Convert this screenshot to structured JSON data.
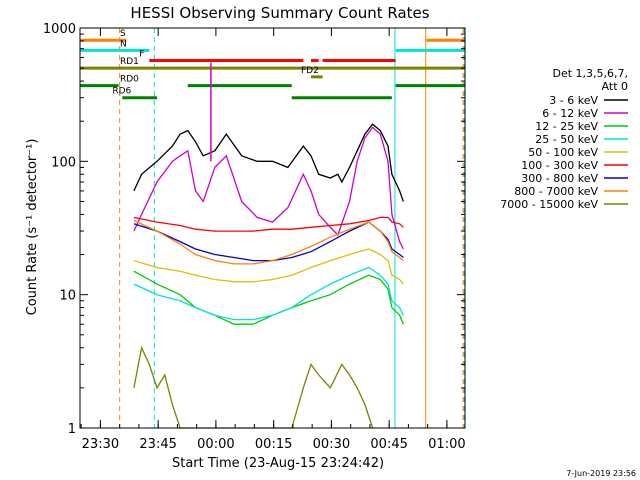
{
  "chart_data": {
    "type": "line",
    "title": "HESSI Observing Summary Count Rates",
    "xlabel": "Start Time (23-Aug-15 23:24:42)",
    "ylabel": "Count Rate (s⁻¹ detector⁻¹)",
    "y_scale": "log",
    "ylim": [
      1,
      1000
    ],
    "xlim_minutes_from_start": [
      0,
      100
    ],
    "x_ticks": [
      "23:30",
      "23:45",
      "00:00",
      "00:15",
      "00:30",
      "00:45",
      "01:00"
    ],
    "y_ticks": [
      "1",
      "10",
      "100",
      "1000"
    ],
    "legend_title": [
      "Det 1,3,5,6,7,",
      "Att 0"
    ],
    "legend_position": "right",
    "timestamp": "7-Jun-2019 23:56",
    "series": [
      {
        "name": "3 - 6 keV",
        "color": "#000000",
        "x": [
          14,
          16,
          20,
          24,
          26,
          28,
          30,
          32,
          35,
          38,
          42,
          46,
          50,
          54,
          58,
          60,
          62,
          65,
          67,
          68,
          70,
          72,
          74,
          76,
          78,
          80,
          81,
          83,
          84
        ],
        "y": [
          60,
          80,
          100,
          130,
          160,
          170,
          140,
          110,
          120,
          160,
          110,
          100,
          100,
          90,
          130,
          110,
          80,
          75,
          80,
          70,
          90,
          120,
          160,
          190,
          170,
          130,
          80,
          60,
          50
        ]
      },
      {
        "name": "6 - 12 keV",
        "color": "#cc00cc",
        "x": [
          14,
          16,
          20,
          24,
          26,
          28,
          30,
          32,
          35,
          38,
          42,
          46,
          50,
          54,
          58,
          60,
          62,
          65,
          67,
          70,
          72,
          74,
          76,
          78,
          80,
          81,
          83,
          84
        ],
        "y": [
          30,
          40,
          70,
          100,
          110,
          120,
          60,
          50,
          90,
          110,
          50,
          38,
          35,
          45,
          80,
          60,
          40,
          32,
          28,
          50,
          100,
          150,
          180,
          160,
          100,
          40,
          25,
          22
        ]
      },
      {
        "name": "12 - 25 keV",
        "color": "#00cc00",
        "x": [
          14,
          20,
          26,
          30,
          35,
          40,
          45,
          50,
          55,
          60,
          65,
          70,
          75,
          78,
          80,
          81,
          83,
          84
        ],
        "y": [
          15,
          12,
          10,
          8,
          7,
          6,
          6,
          7,
          8,
          9,
          10,
          12,
          14,
          13,
          11,
          8,
          7,
          6
        ]
      },
      {
        "name": "25 - 50 keV",
        "color": "#00e0e0",
        "x": [
          14,
          20,
          26,
          30,
          35,
          40,
          45,
          50,
          55,
          60,
          65,
          70,
          75,
          78,
          80,
          81,
          83,
          84
        ],
        "y": [
          12,
          10,
          9,
          8,
          7,
          6.5,
          6.5,
          7,
          8,
          10,
          12,
          14,
          16,
          14,
          12,
          9,
          8,
          7
        ]
      },
      {
        "name": "50 - 100 keV",
        "color": "#e0c000",
        "x": [
          14,
          20,
          26,
          30,
          35,
          40,
          45,
          50,
          55,
          60,
          65,
          70,
          75,
          78,
          80,
          81,
          83,
          84
        ],
        "y": [
          18,
          16,
          15,
          14,
          13,
          12.5,
          12.5,
          13,
          14,
          16,
          18,
          20,
          22,
          20,
          18,
          14,
          13,
          12
        ]
      },
      {
        "name": "100 - 300 keV",
        "color": "#ff0000",
        "x": [
          14,
          20,
          26,
          30,
          35,
          40,
          45,
          50,
          55,
          60,
          65,
          70,
          75,
          78,
          80,
          81,
          83,
          84
        ],
        "y": [
          38,
          35,
          33,
          31,
          30,
          30,
          30,
          31,
          31,
          32,
          33,
          34,
          36,
          38,
          38,
          35,
          34,
          32
        ]
      },
      {
        "name": "300 - 800 keV",
        "color": "#0000cc",
        "x": [
          14,
          20,
          26,
          30,
          35,
          40,
          45,
          50,
          55,
          60,
          65,
          70,
          75,
          78,
          80,
          81,
          83,
          84
        ],
        "y": [
          34,
          30,
          25,
          22,
          20,
          19,
          18,
          18,
          19,
          21,
          25,
          30,
          35,
          30,
          26,
          22,
          20,
          19
        ]
      },
      {
        "name": "800 - 7000 keV",
        "color": "#ff8000",
        "x": [
          14,
          20,
          26,
          30,
          35,
          40,
          45,
          50,
          55,
          60,
          65,
          70,
          75,
          78,
          80,
          81,
          83,
          84
        ],
        "y": [
          36,
          30,
          24,
          20,
          18,
          17,
          17,
          18,
          20,
          23,
          27,
          31,
          35,
          30,
          25,
          21,
          19,
          18
        ]
      },
      {
        "name": "7000 - 15000 keV",
        "color": "#808000",
        "x": [
          14,
          16,
          18,
          20,
          22,
          24,
          26,
          55,
          58,
          60,
          62,
          65,
          68,
          70,
          72,
          74,
          76
        ],
        "y": [
          2,
          4,
          3,
          2,
          2.5,
          1.5,
          1,
          1,
          2,
          3,
          2.5,
          2,
          3,
          2.5,
          2,
          1.5,
          1
        ]
      }
    ],
    "flag_bars": [
      {
        "label": "S",
        "color": "#ff8000",
        "level": 810,
        "segments": [
          [
            0,
            12
          ],
          [
            90,
            100
          ]
        ]
      },
      {
        "label": "N",
        "color": "#00e0e0",
        "level": 680,
        "segments": [
          [
            0,
            18
          ],
          [
            82,
            100
          ]
        ]
      },
      {
        "label": "F",
        "color": "#ff0000",
        "level": 570,
        "segments": [
          [
            18,
            58
          ],
          [
            60,
            62
          ],
          [
            63,
            82
          ]
        ]
      },
      {
        "label": "RD1",
        "color": "#808000",
        "level": 500,
        "segments": [
          [
            0,
            100
          ]
        ]
      },
      {
        "label": "FD2",
        "color": "#808000",
        "level": 430,
        "segments": [
          [
            60,
            63
          ]
        ]
      },
      {
        "label": "RD0",
        "color": "#008000",
        "level": 370,
        "segments": [
          [
            0,
            10
          ],
          [
            28,
            55
          ],
          [
            82,
            100
          ]
        ]
      },
      {
        "label": "RD6",
        "color": "#008000",
        "level": 300,
        "segments": [
          [
            11,
            20
          ],
          [
            55,
            81
          ]
        ]
      }
    ],
    "vertical_markers": [
      {
        "x": 10.3,
        "color": "#ff8000",
        "style": "dashed"
      },
      {
        "x": 19.3,
        "color": "#00e0e0",
        "style": "dashed"
      },
      {
        "x": 81.8,
        "color": "#00e0e0",
        "style": "solid"
      },
      {
        "x": 89.8,
        "color": "#ff8000",
        "style": "solid"
      },
      {
        "x": 99.5,
        "color": "#ff8000",
        "style": "dashed"
      },
      {
        "x": 99.8,
        "color": "#00e0e0",
        "style": "dashed"
      }
    ],
    "spike": {
      "x": 34,
      "color": "#cc00cc",
      "y_from": 100,
      "y_to": 550
    }
  }
}
